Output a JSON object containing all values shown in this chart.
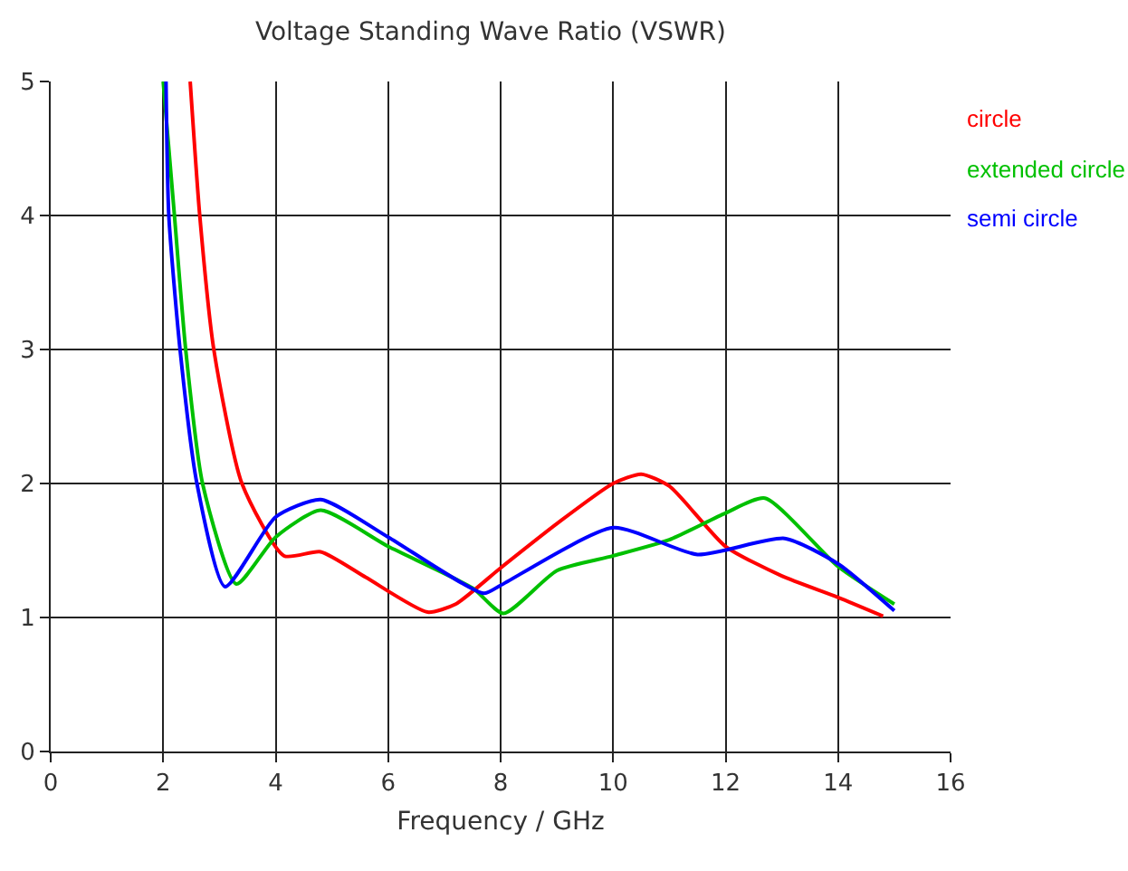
{
  "chart_data": {
    "type": "line",
    "title": "Voltage Standing Wave Ratio (VSWR)",
    "xlabel": "Frequency / GHz",
    "xlim": [
      0,
      16
    ],
    "xticks": [
      0,
      2,
      4,
      6,
      8,
      10,
      12,
      14,
      16
    ],
    "ylim": [
      0,
      5
    ],
    "yticks": [
      0,
      1,
      2,
      3,
      4,
      5
    ],
    "grid": true,
    "legend": "top right",
    "marker": "none",
    "line_style": "solid",
    "series": [
      {
        "name": "circle",
        "color": "#ff0000",
        "x": [
          2.48,
          2.65,
          2.9,
          3.4,
          4.15,
          4.8,
          5.6,
          6.7,
          7.2,
          8,
          9,
          10,
          10.5,
          11,
          12,
          13,
          14,
          14.8
        ],
        "values": [
          5,
          4,
          3,
          2,
          1.46,
          1.49,
          1.3,
          1.04,
          1.1,
          1.37,
          1.7,
          2.0,
          2.07,
          1.98,
          1.53,
          1.31,
          1.15,
          1.01
        ]
      },
      {
        "name": "extended circle",
        "color": "#00c000",
        "x": [
          2.0,
          2.2,
          2.4,
          2.7,
          3.3,
          4,
          4.8,
          6,
          7.5,
          8.05,
          9,
          10,
          11,
          12,
          12.7,
          14,
          15
        ],
        "values": [
          5,
          4,
          3,
          2,
          1.25,
          1.6,
          1.8,
          1.53,
          1.22,
          1.03,
          1.35,
          1.46,
          1.58,
          1.78,
          1.89,
          1.38,
          1.1
        ]
      },
      {
        "name": "semi circle",
        "color": "#0000ff",
        "x": [
          2.05,
          2.1,
          2.3,
          2.6,
          3.1,
          4,
          4.8,
          6,
          7.7,
          8,
          10,
          11.5,
          13.05,
          14,
          15
        ],
        "values": [
          5,
          4,
          3,
          2,
          1.23,
          1.75,
          1.88,
          1.6,
          1.18,
          1.24,
          1.67,
          1.47,
          1.59,
          1.4,
          1.05
        ]
      }
    ]
  }
}
